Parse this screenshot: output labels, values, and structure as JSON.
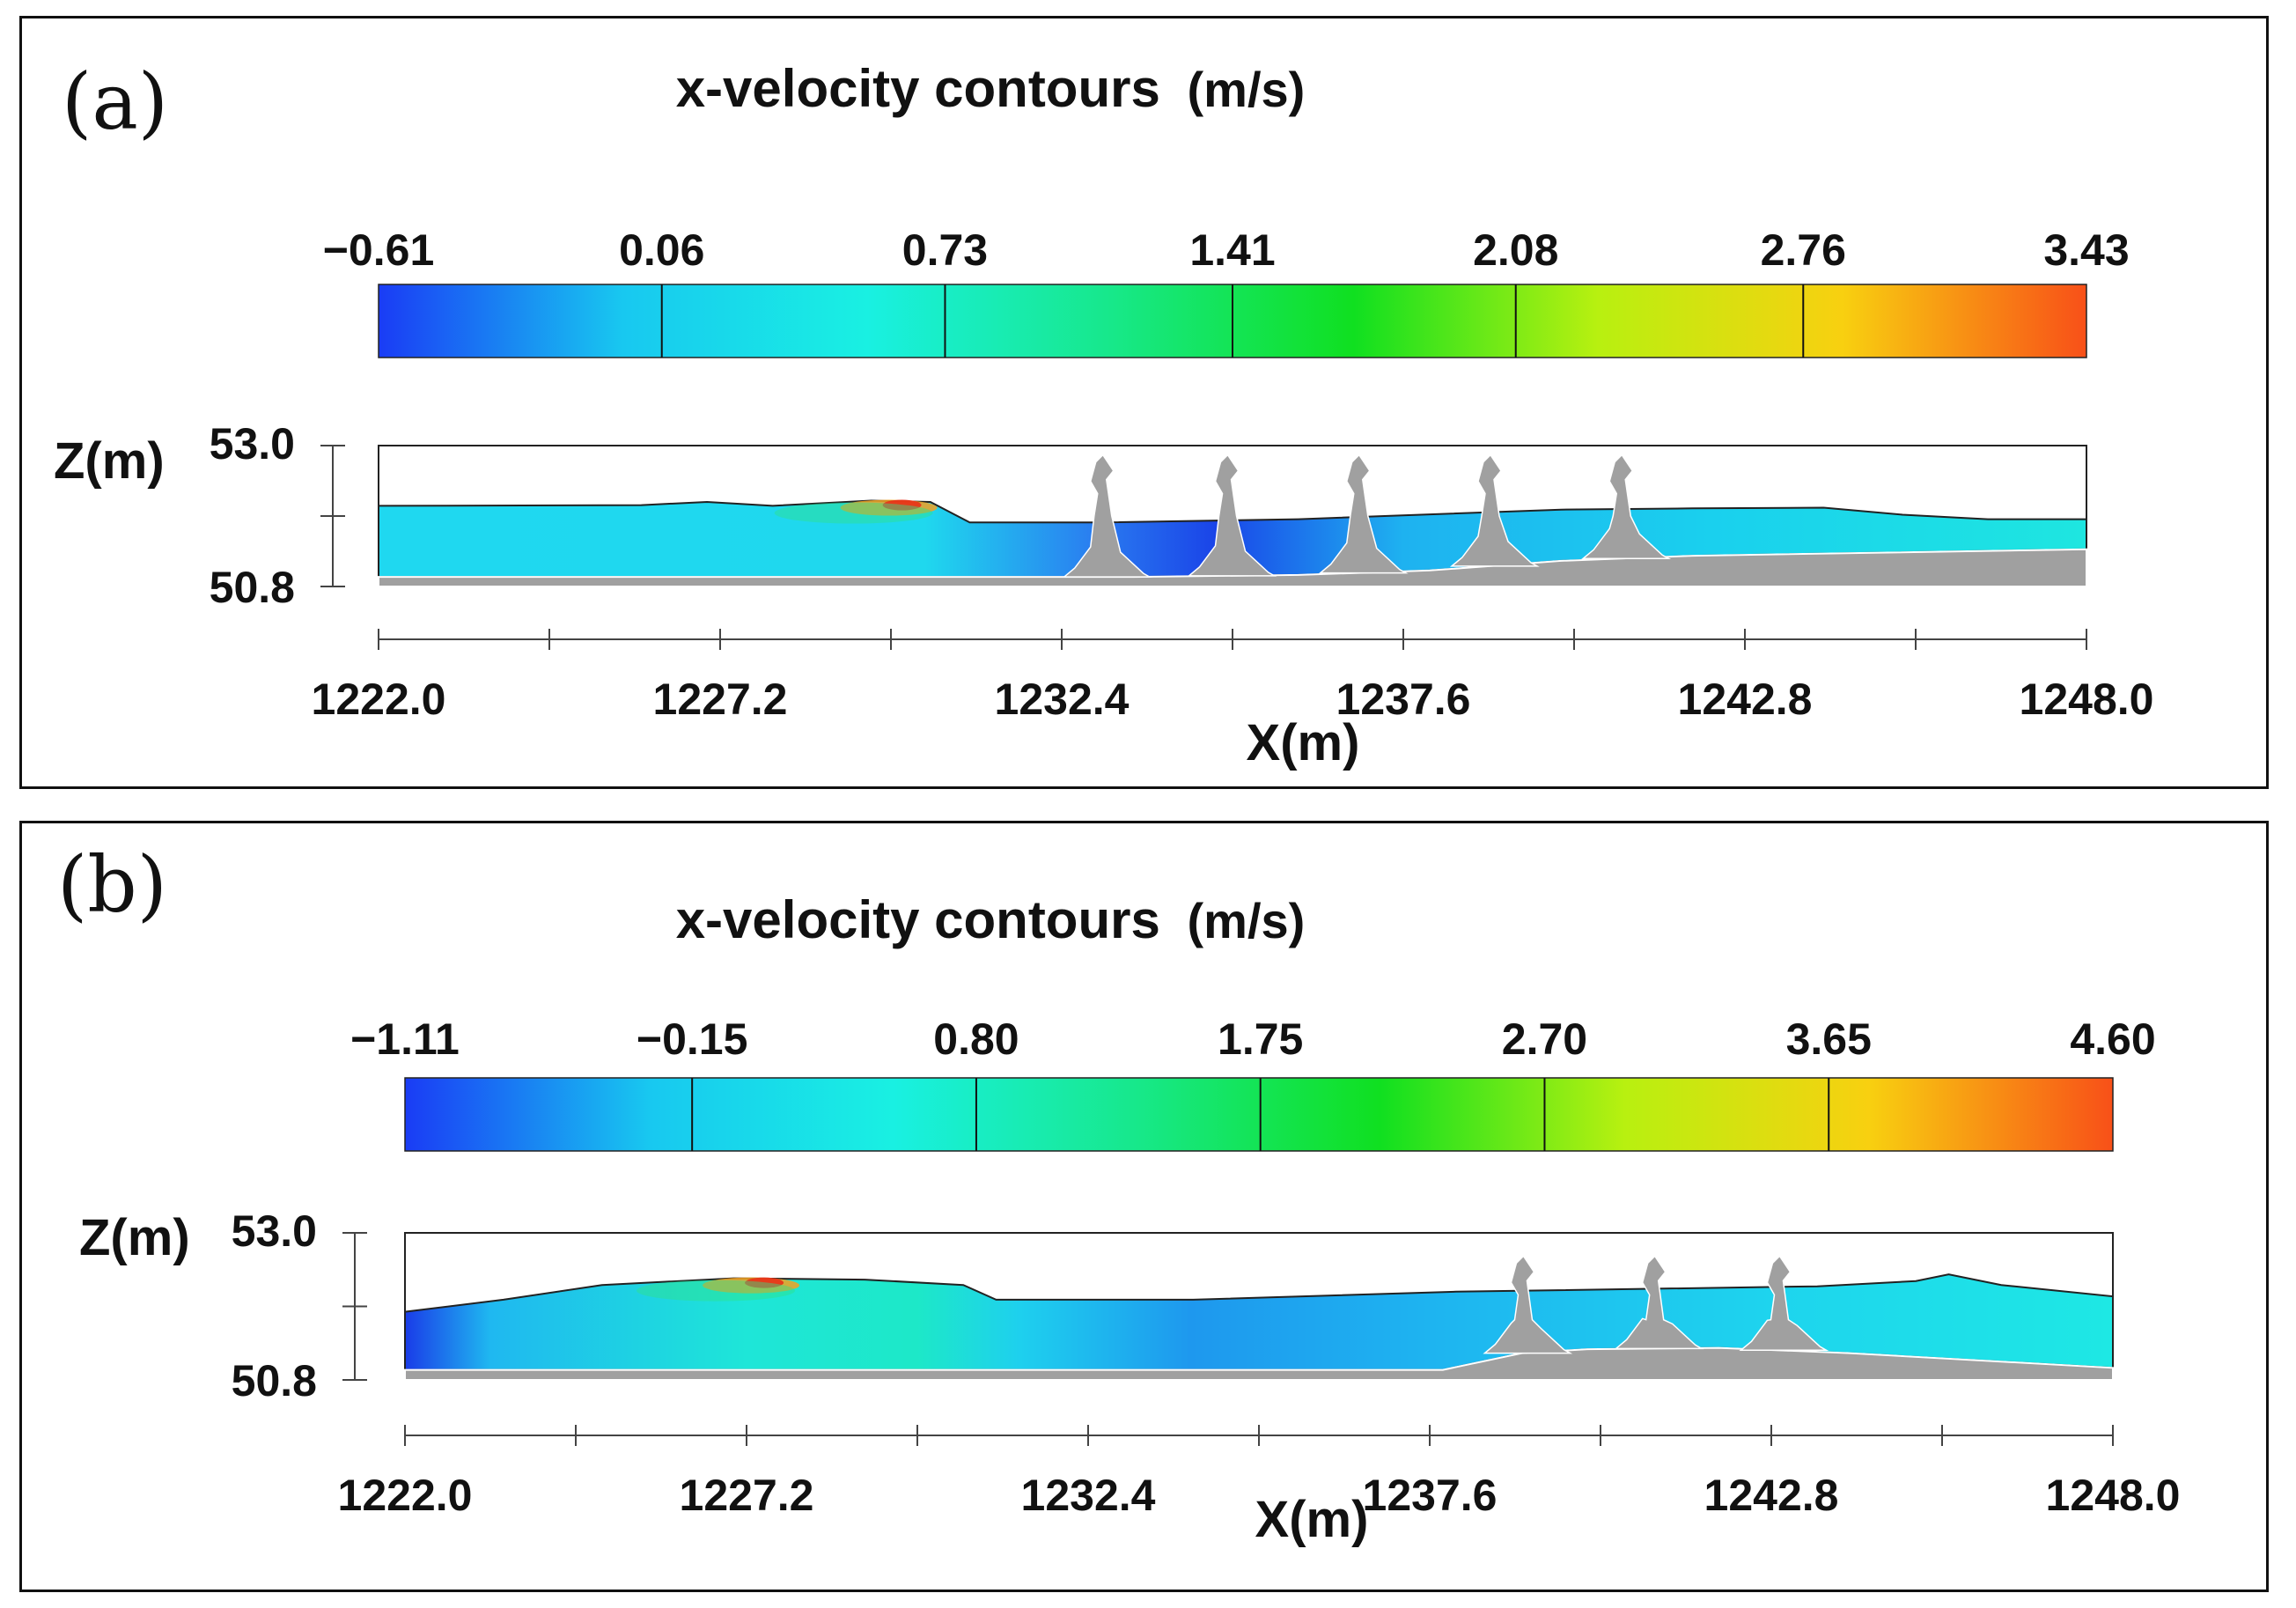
{
  "chart_data": [
    {
      "type": "heatmap",
      "panel_label": "(a)",
      "title": "x-velocity contours",
      "title_unit": "(m/s)",
      "colorbar": {
        "ticks": [
          "−0.61",
          "0.06",
          "0.73",
          "1.41",
          "2.08",
          "2.76",
          "3.43"
        ],
        "values": [
          -0.61,
          0.06,
          0.73,
          1.41,
          2.08,
          2.76,
          3.43
        ],
        "colors": [
          "#1a3cf5",
          "#18c8f0",
          "#19f0e2",
          "#17e88a",
          "#10e020",
          "#b8f010",
          "#f8d010",
          "#f85018"
        ]
      },
      "xlabel": "X(m)",
      "ylabel": "Z(m)",
      "xlim": [
        1222.0,
        1248.0
      ],
      "ylim": [
        50.8,
        53.0
      ],
      "x_ticks": [
        "1222.0",
        "1227.2",
        "1232.4",
        "1237.6",
        "1242.8",
        "1248.0"
      ],
      "y_ticks": [
        "53.0",
        "50.8"
      ],
      "water_surface": [
        {
          "x": 1222.0,
          "z": 52.06
        },
        {
          "x": 1226.0,
          "z": 52.07
        },
        {
          "x": 1227.0,
          "z": 52.12
        },
        {
          "x": 1228.0,
          "z": 52.06
        },
        {
          "x": 1229.5,
          "z": 52.14
        },
        {
          "x": 1230.4,
          "z": 52.12
        },
        {
          "x": 1231.0,
          "z": 51.8
        },
        {
          "x": 1233.0,
          "z": 51.8
        },
        {
          "x": 1236.0,
          "z": 51.85
        },
        {
          "x": 1240.0,
          "z": 52.0
        },
        {
          "x": 1242.0,
          "z": 52.02
        },
        {
          "x": 1244.0,
          "z": 52.03
        },
        {
          "x": 1245.2,
          "z": 51.92
        },
        {
          "x": 1246.5,
          "z": 51.85
        },
        {
          "x": 1248.0,
          "z": 51.85
        }
      ],
      "bed": [
        {
          "x": 1222.0,
          "z": 50.95
        },
        {
          "x": 1233.5,
          "z": 50.95
        },
        {
          "x": 1236.0,
          "z": 50.98
        },
        {
          "x": 1238.0,
          "z": 51.05
        },
        {
          "x": 1240.0,
          "z": 51.2
        },
        {
          "x": 1242.0,
          "z": 51.28
        },
        {
          "x": 1248.0,
          "z": 51.38
        }
      ],
      "piers_x": [
        1233.0,
        1234.9,
        1236.9,
        1238.9,
        1240.9
      ],
      "pier_top_z": 52.8
    },
    {
      "type": "heatmap",
      "panel_label": "(b)",
      "title": "x-velocity contours",
      "title_unit": "(m/s)",
      "colorbar": {
        "ticks": [
          "−1.11",
          "−0.15",
          "0.80",
          "1.75",
          "2.70",
          "3.65",
          "4.60"
        ],
        "values": [
          -1.11,
          -0.15,
          0.8,
          1.75,
          2.7,
          3.65,
          4.6
        ],
        "colors": [
          "#1a3cf5",
          "#18c8f0",
          "#19f0e2",
          "#17e88a",
          "#10e020",
          "#b8f010",
          "#f8d010",
          "#f85018"
        ]
      },
      "xlabel": "X(m)",
      "ylabel": "Z(m)",
      "xlim": [
        1222.0,
        1248.0
      ],
      "ylim": [
        50.8,
        53.0
      ],
      "x_ticks": [
        "1222.0",
        "1227.2",
        "1232.4",
        "1237.6",
        "1242.8",
        "1248.0"
      ],
      "y_ticks": [
        "53.0",
        "50.8"
      ],
      "water_surface": [
        {
          "x": 1222.0,
          "z": 51.82
        },
        {
          "x": 1223.5,
          "z": 52.0
        },
        {
          "x": 1225.0,
          "z": 52.22
        },
        {
          "x": 1227.0,
          "z": 52.32
        },
        {
          "x": 1229.0,
          "z": 52.3
        },
        {
          "x": 1230.5,
          "z": 52.22
        },
        {
          "x": 1231.0,
          "z": 52.0
        },
        {
          "x": 1234.0,
          "z": 52.0
        },
        {
          "x": 1238.0,
          "z": 52.12
        },
        {
          "x": 1243.5,
          "z": 52.2
        },
        {
          "x": 1245.0,
          "z": 52.28
        },
        {
          "x": 1245.5,
          "z": 52.38
        },
        {
          "x": 1246.3,
          "z": 52.22
        },
        {
          "x": 1248.0,
          "z": 52.05
        }
      ],
      "bed": [
        {
          "x": 1222.0,
          "z": 50.95
        },
        {
          "x": 1237.8,
          "z": 50.95
        },
        {
          "x": 1239.0,
          "z": 51.2
        },
        {
          "x": 1240.0,
          "z": 51.26
        },
        {
          "x": 1242.0,
          "z": 51.28
        },
        {
          "x": 1244.0,
          "z": 51.2
        },
        {
          "x": 1248.0,
          "z": 50.98
        }
      ],
      "piers_x": [
        1239.0,
        1241.0,
        1242.9
      ],
      "pier_top_z": 52.6
    }
  ]
}
